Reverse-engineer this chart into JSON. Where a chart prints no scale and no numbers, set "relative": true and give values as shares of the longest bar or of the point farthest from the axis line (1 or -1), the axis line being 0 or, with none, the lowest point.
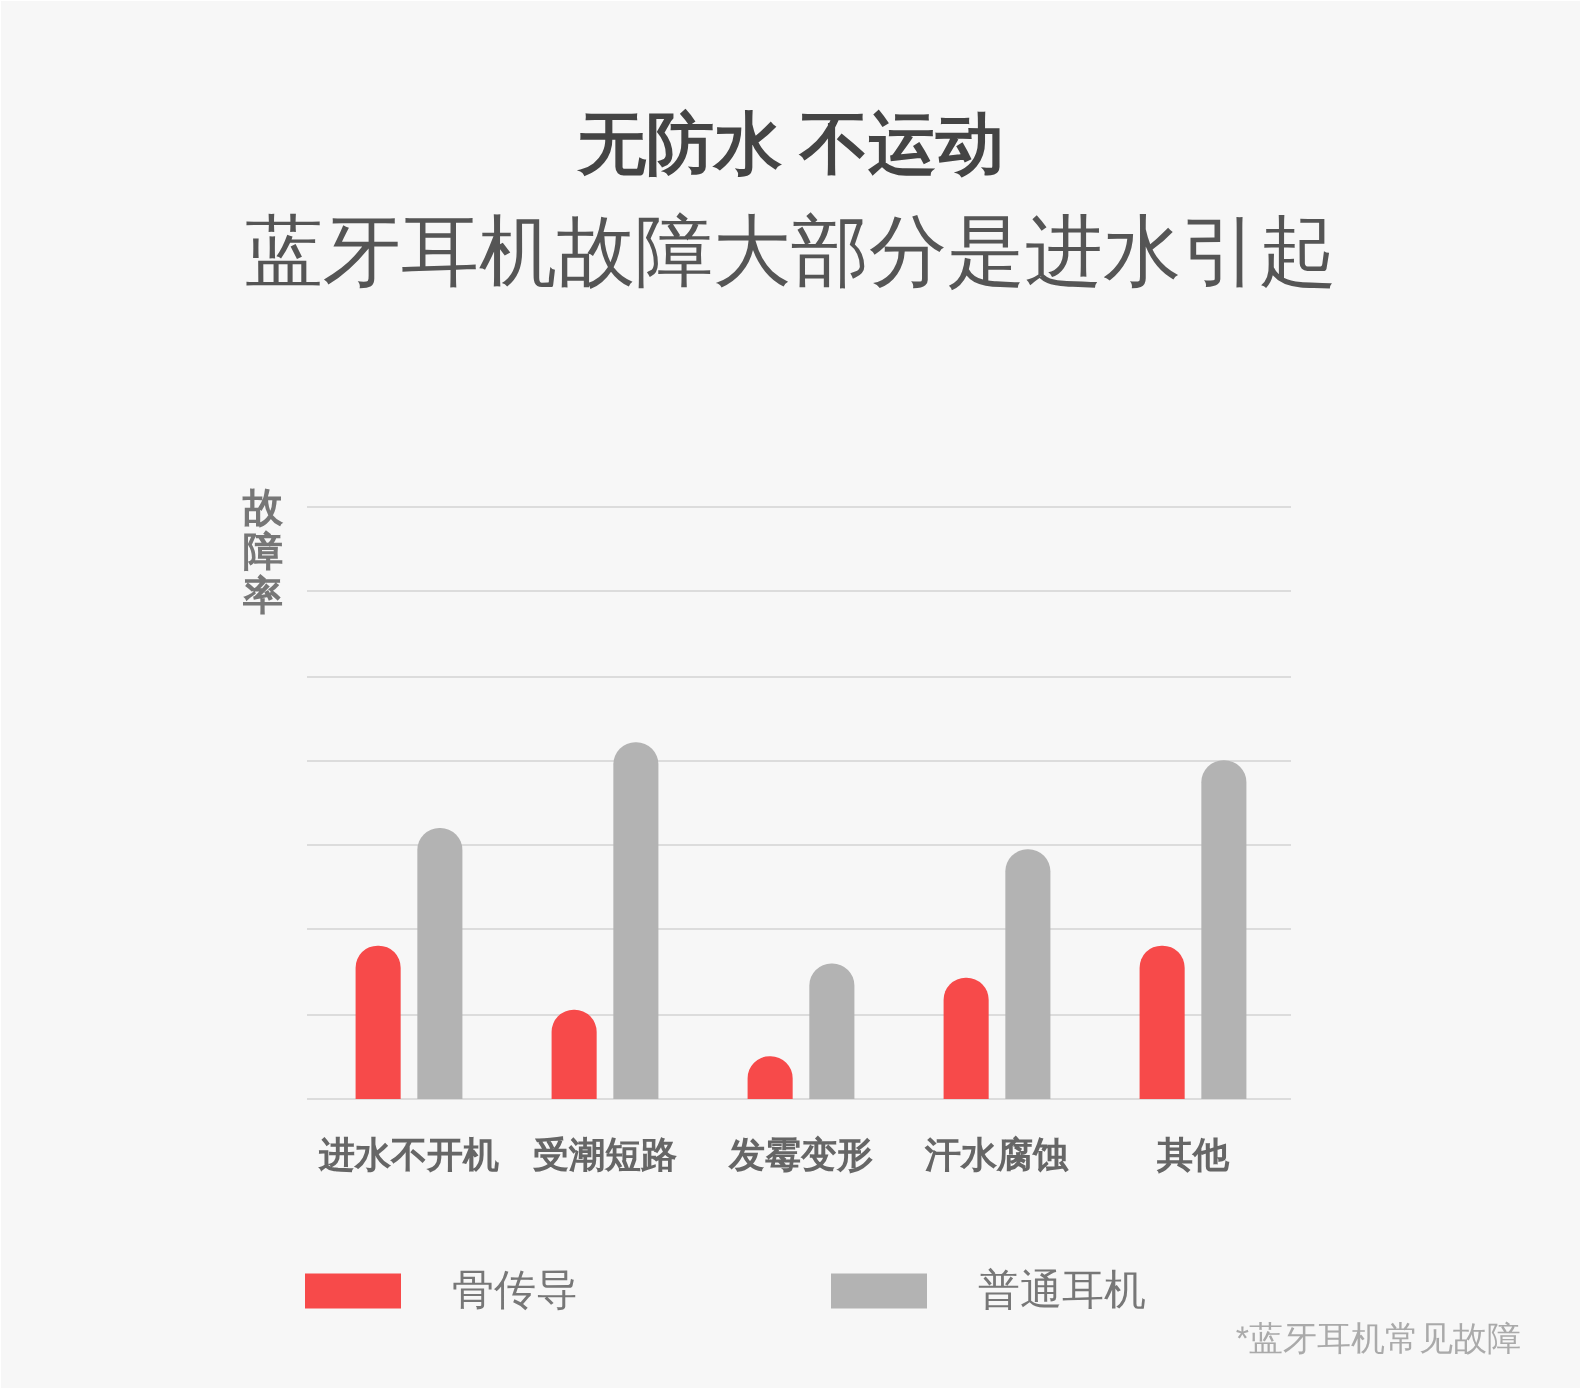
{
  "chart_data": {
    "type": "bar",
    "title": "无防水 不运动",
    "subtitle": "蓝牙耳机故障大部分是进水引起",
    "ylabel": "故障率",
    "categories": [
      "进水不开机",
      "受潮短路",
      "发霉变形",
      "汗水腐蚀",
      "其他"
    ],
    "relative": true,
    "series": [
      {
        "name": "骨传导",
        "color": "#f74a4a",
        "values": [
          0.43,
          0.25,
          0.12,
          0.34,
          0.43
        ]
      },
      {
        "name": "普通耳机",
        "color": "#b3b3b3",
        "values": [
          0.76,
          1,
          0.38,
          0.7,
          0.95
        ]
      }
    ],
    "grid": "y",
    "legend": "bottom left",
    "annotations": [
      "*蓝牙耳机常见故障"
    ]
  }
}
